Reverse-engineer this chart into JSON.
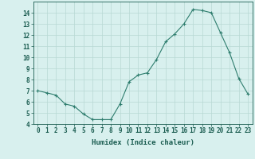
{
  "x": [
    0,
    1,
    2,
    3,
    4,
    5,
    6,
    7,
    8,
    9,
    10,
    11,
    12,
    13,
    14,
    15,
    16,
    17,
    18,
    19,
    20,
    21,
    22,
    23
  ],
  "y": [
    7.0,
    6.8,
    6.6,
    5.8,
    5.6,
    4.9,
    4.4,
    4.4,
    4.4,
    5.8,
    7.8,
    8.4,
    8.6,
    9.8,
    11.4,
    12.1,
    13.0,
    14.3,
    14.2,
    14.0,
    12.2,
    10.4,
    8.1,
    6.7
  ],
  "line_color": "#2e7d6e",
  "marker": "+",
  "marker_color": "#2e7d6e",
  "bg_color": "#d8f0ee",
  "grid_color": "#b8d8d4",
  "xlabel": "Humidex (Indice chaleur)",
  "xlim": [
    -0.5,
    23.5
  ],
  "ylim": [
    4,
    15
  ],
  "xticks": [
    0,
    1,
    2,
    3,
    4,
    5,
    6,
    7,
    8,
    9,
    10,
    11,
    12,
    13,
    14,
    15,
    16,
    17,
    18,
    19,
    20,
    21,
    22,
    23
  ],
  "yticks": [
    4,
    5,
    6,
    7,
    8,
    9,
    10,
    11,
    12,
    13,
    14
  ],
  "tick_fontsize": 5.5,
  "xlabel_fontsize": 6.5,
  "label_color": "#1a5c50"
}
